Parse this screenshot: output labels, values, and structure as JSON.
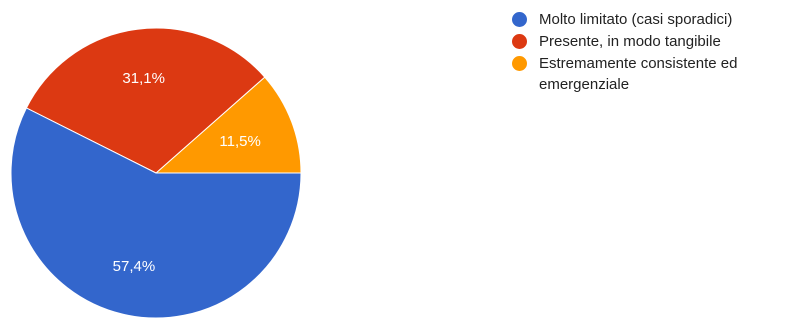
{
  "chart_data": {
    "type": "pie",
    "categories": [
      "Molto limitato (casi sporadici)",
      "Presente, in modo tangibile",
      "Estremamente consistente ed emergenziale"
    ],
    "values": [
      57.4,
      31.1,
      11.5
    ],
    "value_labels": [
      "57,4%",
      "31,1%",
      "11,5%"
    ],
    "colors": [
      "#3366cc",
      "#dc3912",
      "#ff9900"
    ],
    "start_angle_deg": 90,
    "direction": "counterclockwise",
    "legend_position": "right"
  }
}
